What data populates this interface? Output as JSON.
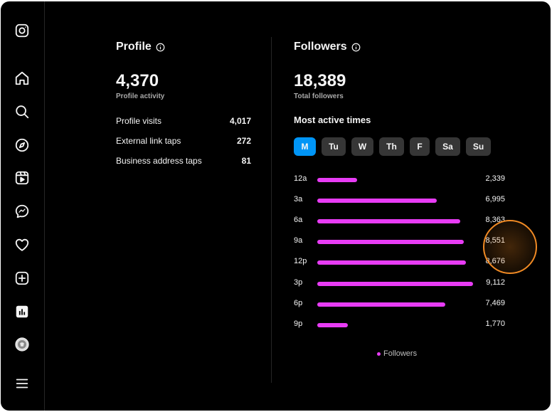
{
  "sidebar": {
    "items": [
      {
        "icon": "instagram-logo-icon"
      },
      {
        "icon": "home-icon"
      },
      {
        "icon": "search-icon"
      },
      {
        "icon": "explore-compass-icon"
      },
      {
        "icon": "reels-icon"
      },
      {
        "icon": "messenger-icon"
      },
      {
        "icon": "heart-icon"
      },
      {
        "icon": "create-plus-icon"
      },
      {
        "icon": "insights-chart-icon"
      },
      {
        "icon": "profile-avatar-icon"
      },
      {
        "icon": "menu-hamburger-icon"
      }
    ]
  },
  "profile": {
    "heading": "Profile",
    "total": "4,370",
    "total_label": "Profile activity",
    "stats": [
      {
        "label": "Profile visits",
        "value": "4,017"
      },
      {
        "label": "External link taps",
        "value": "272"
      },
      {
        "label": "Business address taps",
        "value": "81"
      }
    ]
  },
  "followers": {
    "heading": "Followers",
    "total": "18,389",
    "total_label": "Total followers",
    "section_title": "Most active times",
    "days": [
      "M",
      "Tu",
      "W",
      "Th",
      "F",
      "Sa",
      "Su"
    ],
    "selected_day": "M"
  },
  "chart_data": {
    "type": "bar",
    "orientation": "horizontal",
    "categories": [
      "12a",
      "3a",
      "6a",
      "9a",
      "12p",
      "3p",
      "6p",
      "9p"
    ],
    "value_labels": [
      "2,339",
      "6,995",
      "8,363",
      "8,551",
      "8,676",
      "9,112",
      "7,469",
      "1,770"
    ],
    "series": [
      {
        "name": "Followers",
        "values": [
          2339,
          6995,
          8363,
          8551,
          8676,
          9112,
          7469,
          1770
        ],
        "color": "#e83cf5"
      }
    ],
    "legend": "Followers",
    "legend_position": "bottom"
  },
  "colors": {
    "background": "#000000",
    "accent": "#0095f6",
    "bar": "#e83cf5",
    "cursor": "#f08a24"
  }
}
